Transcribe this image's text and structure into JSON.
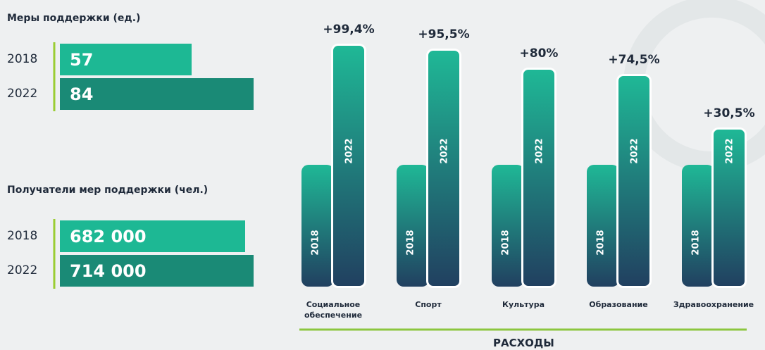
{
  "chart_data": [
    {
      "type": "hbar",
      "title": "Меры поддержки (ед.)",
      "categories": [
        "2018",
        "2022"
      ],
      "values": [
        57,
        84
      ],
      "colors": [
        "#1db894",
        "#1a8a76"
      ]
    },
    {
      "type": "hbar",
      "title": "Получатели мер поддержки (чел.)",
      "categories": [
        "2018",
        "2022"
      ],
      "values": [
        682000,
        714000
      ],
      "value_labels": [
        "682 000",
        "714 000"
      ],
      "colors": [
        "#1db894",
        "#1a8a76"
      ]
    },
    {
      "type": "growth",
      "title": "РАСХОДЫ",
      "categories": [
        "Социальное обеспечение",
        "Спорт",
        "Культура",
        "Образование",
        "Здравоохранение"
      ],
      "series_names": [
        "2018",
        "2022"
      ],
      "growth": [
        99.4,
        95.5,
        80,
        74.5,
        30.5
      ],
      "growth_labels": [
        "+99,4%",
        "+95,5%",
        "+80%",
        "+74,5%",
        "+30,5%"
      ]
    }
  ]
}
